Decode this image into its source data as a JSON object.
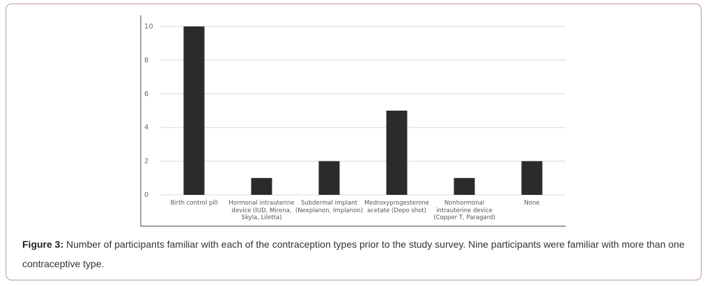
{
  "chart_data": {
    "type": "bar",
    "categories": [
      "Birth control pill",
      "Hormonal intrauterine device (IUD, Mirena, Skyla, Liletta)",
      "Subdermal implant (Nexplanon, Implanon)",
      "Medroxyprogesterone acetate (Depo shot)",
      "Nonhormonal intrauterine device (Copper T, Paragard)",
      "None"
    ],
    "values": [
      10,
      1,
      2,
      5,
      1,
      2
    ],
    "color": "#2b2b2b",
    "ylim": [
      0,
      10
    ],
    "yticks": [
      0,
      2,
      4,
      6,
      8,
      10
    ],
    "grid": true
  },
  "caption": {
    "label": "Figure 3:",
    "text": "Number of participants familiar with each of the contraception types prior to the study survey. Nine participants were familiar with more than one contraceptive type."
  }
}
